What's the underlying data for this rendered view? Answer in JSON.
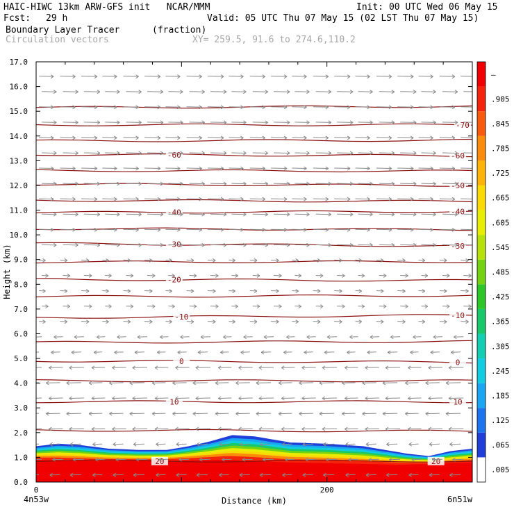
{
  "header": {
    "line1_left": "HAIC-HIWC 13km ARW-GFS init   NCAR/MMM",
    "line1_right": "Init: 00 UTC Wed 06 May 15",
    "fcst_label": "Fcst:",
    "fcst_value": "29 h",
    "valid": "Valid: 05 UTC Thu 07 May 15 (02 LST Thu 07 May 15)",
    "field_name": "Boundary Layer Tracer",
    "field_units": "(fraction)",
    "vector_name": "Circulation vectors",
    "xy": "XY= 259.5, 91.6 to 274.6,110.2"
  },
  "colors": {
    "contour": "#8b1010",
    "vector": "#8a8a8a",
    "colorbar": [
      "#ffffff",
      "#1f3fd8",
      "#1c74ee",
      "#1aa6f3",
      "#12cde2",
      "#13ceb0",
      "#19c86a",
      "#2cc627",
      "#73d312",
      "#b6e10a",
      "#e8ed04",
      "#fbd905",
      "#fdb307",
      "#fb8b0a",
      "#f8590c",
      "#f4230c",
      "#f00000"
    ]
  },
  "chart_data": {
    "type": "heatmap",
    "title": "Boundary Layer Tracer",
    "units": "(fraction)",
    "overlay": "Circulation vectors",
    "xlabel": "Distance (km)",
    "ylabel": "Height (km)",
    "xlim": [
      0,
      300
    ],
    "ylim": [
      0,
      17
    ],
    "x_ticks": [
      0,
      200
    ],
    "y_ticks": [
      "0.0",
      "1.0",
      "2.0",
      "3.0",
      "4.0",
      "5.0",
      "6.0",
      "7.0",
      "8.0",
      "9.0",
      "10.0",
      "11.0",
      "12.0",
      "13.0",
      "14.0",
      "15.0",
      "16.0",
      "17.0"
    ],
    "x_endpoints": {
      "left": "4n53w",
      "right": "6n51w"
    },
    "colorbar_labels": [
      "–",
      ".905",
      ".845",
      ".785",
      ".725",
      ".665",
      ".605",
      ".545",
      ".485",
      ".425",
      ".365",
      ".305",
      ".245",
      ".185",
      ".125",
      ".065",
      ".005"
    ],
    "tracer_layer_top_km": [
      [
        0,
        1.45
      ],
      [
        15,
        1.55
      ],
      [
        30,
        1.5
      ],
      [
        50,
        1.35
      ],
      [
        70,
        1.3
      ],
      [
        90,
        1.3
      ],
      [
        105,
        1.45
      ],
      [
        120,
        1.65
      ],
      [
        135,
        1.9
      ],
      [
        150,
        1.85
      ],
      [
        175,
        1.6
      ],
      [
        200,
        1.55
      ],
      [
        225,
        1.45
      ],
      [
        240,
        1.3
      ],
      [
        255,
        1.15
      ],
      [
        270,
        1.05
      ],
      [
        285,
        1.25
      ],
      [
        300,
        1.35
      ]
    ],
    "high_fraction_top_km": [
      [
        0,
        0.9
      ],
      [
        40,
        0.85
      ],
      [
        80,
        0.85
      ],
      [
        130,
        0.9
      ],
      [
        170,
        0.8
      ],
      [
        210,
        0.75
      ],
      [
        250,
        0.7
      ],
      [
        280,
        0.75
      ],
      [
        300,
        0.8
      ]
    ],
    "temperature_contours": [
      {
        "label": "-70",
        "left_km": 14.45,
        "right_km": 14.45,
        "label_x": [
          300
        ]
      },
      {
        "label": "-60",
        "left_km": 13.25,
        "right_km": 13.2,
        "label_x": [
          95,
          290
        ]
      },
      {
        "label": "-50",
        "left_km": 12.05,
        "right_km": 12.0,
        "label_x": [
          290
        ]
      },
      {
        "label": "-40",
        "left_km": 10.9,
        "right_km": 10.95,
        "label_x": [
          95,
          290
        ]
      },
      {
        "label": "-30",
        "left_km": 9.65,
        "right_km": 9.55,
        "label_x": [
          95,
          290
        ]
      },
      {
        "label": "-20",
        "left_km": 8.2,
        "right_km": 8.15,
        "label_x": [
          95
        ]
      },
      {
        "label": "-10",
        "left_km": 6.65,
        "right_km": 6.75,
        "label_x": [
          100,
          290
        ]
      },
      {
        "label": "0",
        "left_km": 4.9,
        "right_km": 4.85,
        "label_x": [
          100,
          290
        ]
      },
      {
        "label": "10",
        "left_km": 3.25,
        "right_km": 3.25,
        "label_x": [
          95,
          290
        ]
      },
      {
        "label": "20",
        "left_km": 0.85,
        "right_km": 0.85,
        "label_x": [
          85,
          275
        ]
      }
    ],
    "unlabeled_contours_km": [
      15.15,
      13.8,
      12.6,
      11.4,
      10.25,
      8.9,
      7.5,
      5.65,
      4.1,
      2.1
    ]
  }
}
